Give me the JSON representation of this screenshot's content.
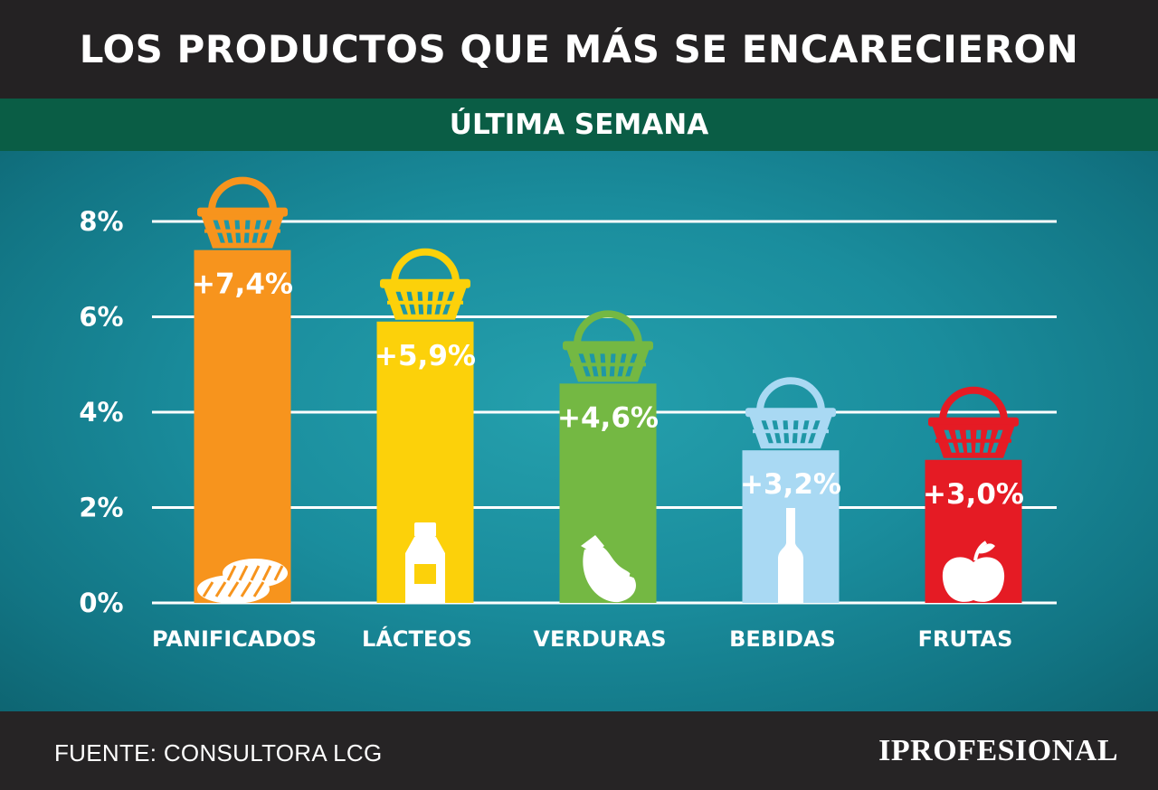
{
  "header": {
    "title": "LOS PRODUCTOS QUE MÁS SE ENCARECIERON",
    "subtitle": "ÚLTIMA SEMANA"
  },
  "footer": {
    "source": "FUENTE:  CONSULTORA LCG",
    "logo": "IPROFESIONAL"
  },
  "chart_data": {
    "type": "bar",
    "categories": [
      "PANIFICADOS",
      "LÁCTEOS",
      "VERDURAS",
      "BEBIDAS",
      "FRUTAS"
    ],
    "values": [
      7.4,
      5.9,
      4.6,
      3.2,
      3.0
    ],
    "data_labels": [
      "+7,4%",
      "+5,9%",
      "+4,6%",
      "+3,2%",
      "+3,0%"
    ],
    "colors": [
      "#f7941d",
      "#fcd10a",
      "#74b843",
      "#a9d9f3",
      "#e51b24"
    ],
    "icons": [
      "bread-icon",
      "milk-bottle-icon",
      "eggplant-icon",
      "wine-bottle-icon",
      "apple-icon"
    ],
    "ylim": [
      0,
      8
    ],
    "yticks": [
      0,
      2,
      4,
      6,
      8
    ],
    "ytick_labels": [
      "0%",
      "2%",
      "4%",
      "6%",
      "8%"
    ],
    "grid": true,
    "legend": "none",
    "xlabel": "",
    "ylabel": ""
  }
}
